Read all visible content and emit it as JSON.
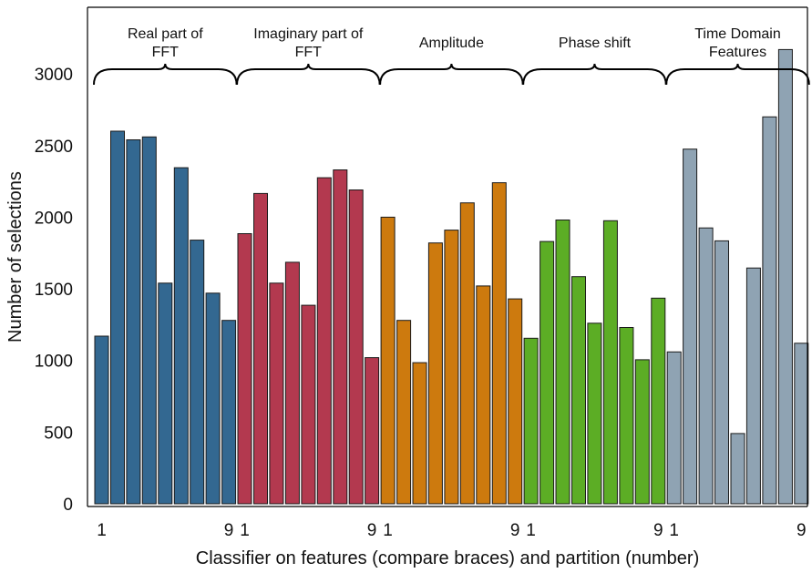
{
  "chart_data": {
    "type": "bar",
    "xlabel": "Classifier on features (compare braces) and partition (number)",
    "ylabel": "Number of selections",
    "ylim": [
      0,
      3200
    ],
    "yticks": [
      0,
      500,
      1000,
      1500,
      2000,
      2500,
      3000
    ],
    "grid": false,
    "partition_tick_labels": [
      "1",
      "9"
    ],
    "groups": [
      {
        "label_lines": [
          "Real part of",
          "FFT"
        ],
        "color": "#336891",
        "values": [
          1170,
          2600,
          2540,
          2560,
          1540,
          2345,
          1840,
          1470,
          1280
        ]
      },
      {
        "label_lines": [
          "Imaginary part of",
          "FFT"
        ],
        "color": "#b3394f",
        "values": [
          1885,
          2165,
          1540,
          1685,
          1385,
          2275,
          2330,
          2190,
          1020
        ]
      },
      {
        "label_lines": [
          "Amplitude"
        ],
        "color": "#cd7a0e",
        "values": [
          2000,
          1280,
          985,
          1820,
          1910,
          2100,
          1520,
          2240,
          1430
        ]
      },
      {
        "label_lines": [
          "Phase shift"
        ],
        "color": "#5cad25",
        "values": [
          1155,
          1830,
          1980,
          1585,
          1260,
          1975,
          1230,
          1005,
          1435
        ]
      },
      {
        "label_lines": [
          "Time Domain",
          "Features"
        ],
        "color": "#8fa3b3",
        "values": [
          1060,
          2475,
          1925,
          1835,
          490,
          1645,
          2700,
          3170,
          1120
        ]
      }
    ]
  }
}
